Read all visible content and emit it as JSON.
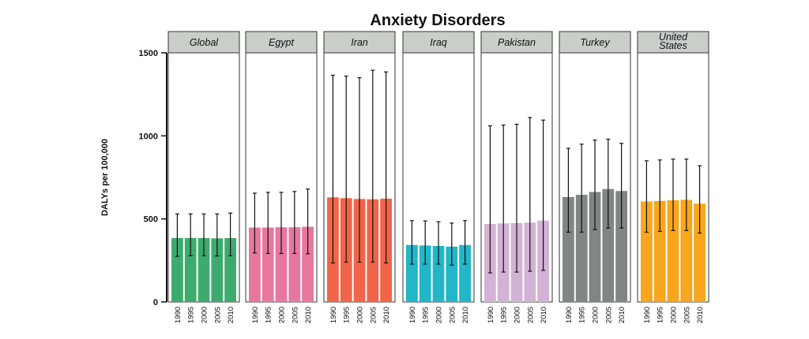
{
  "chart_data": {
    "type": "bar",
    "title": "Anxiety Disorders",
    "ylabel": "DALYs per 100,000",
    "xlabel": "",
    "ylim": [
      0,
      1500
    ],
    "yticks": [
      "0",
      "500",
      "1000",
      "1500"
    ],
    "categories": [
      "1990",
      "1995",
      "2000",
      "2005",
      "2010"
    ],
    "grid": false,
    "panels": [
      {
        "name": "Global",
        "color": "#3dab6e",
        "values": [
          385,
          385,
          385,
          383,
          385
        ],
        "lower": [
          275,
          278,
          278,
          277,
          278
        ],
        "upper": [
          530,
          530,
          530,
          530,
          535
        ]
      },
      {
        "name": "Egypt",
        "color": "#e8779f",
        "values": [
          448,
          448,
          450,
          450,
          453
        ],
        "lower": [
          295,
          292,
          292,
          292,
          290
        ],
        "upper": [
          655,
          660,
          660,
          665,
          680
        ]
      },
      {
        "name": "Iran",
        "color": "#f0654a",
        "values": [
          630,
          625,
          620,
          618,
          622
        ],
        "lower": [
          235,
          240,
          240,
          240,
          235
        ],
        "upper": [
          1365,
          1360,
          1350,
          1395,
          1385
        ]
      },
      {
        "name": "Iraq",
        "color": "#22b6c8",
        "values": [
          343,
          340,
          337,
          333,
          343
        ],
        "lower": [
          228,
          228,
          228,
          222,
          228
        ],
        "upper": [
          490,
          488,
          483,
          475,
          490
        ]
      },
      {
        "name": "Pakistan",
        "color": "#d3b3d5",
        "values": [
          470,
          473,
          475,
          478,
          490
        ],
        "lower": [
          175,
          180,
          180,
          185,
          190
        ],
        "upper": [
          1060,
          1065,
          1070,
          1110,
          1095
        ]
      },
      {
        "name": "Turkey",
        "color": "#7f8683",
        "values": [
          632,
          645,
          662,
          680,
          668
        ],
        "lower": [
          420,
          420,
          435,
          445,
          445
        ],
        "upper": [
          925,
          950,
          975,
          980,
          955
        ]
      },
      {
        "name": "United\nStates",
        "color": "#f8a61d",
        "values": [
          605,
          608,
          612,
          615,
          592
        ],
        "lower": [
          420,
          425,
          430,
          430,
          415
        ],
        "upper": [
          850,
          855,
          860,
          860,
          820
        ]
      }
    ]
  }
}
